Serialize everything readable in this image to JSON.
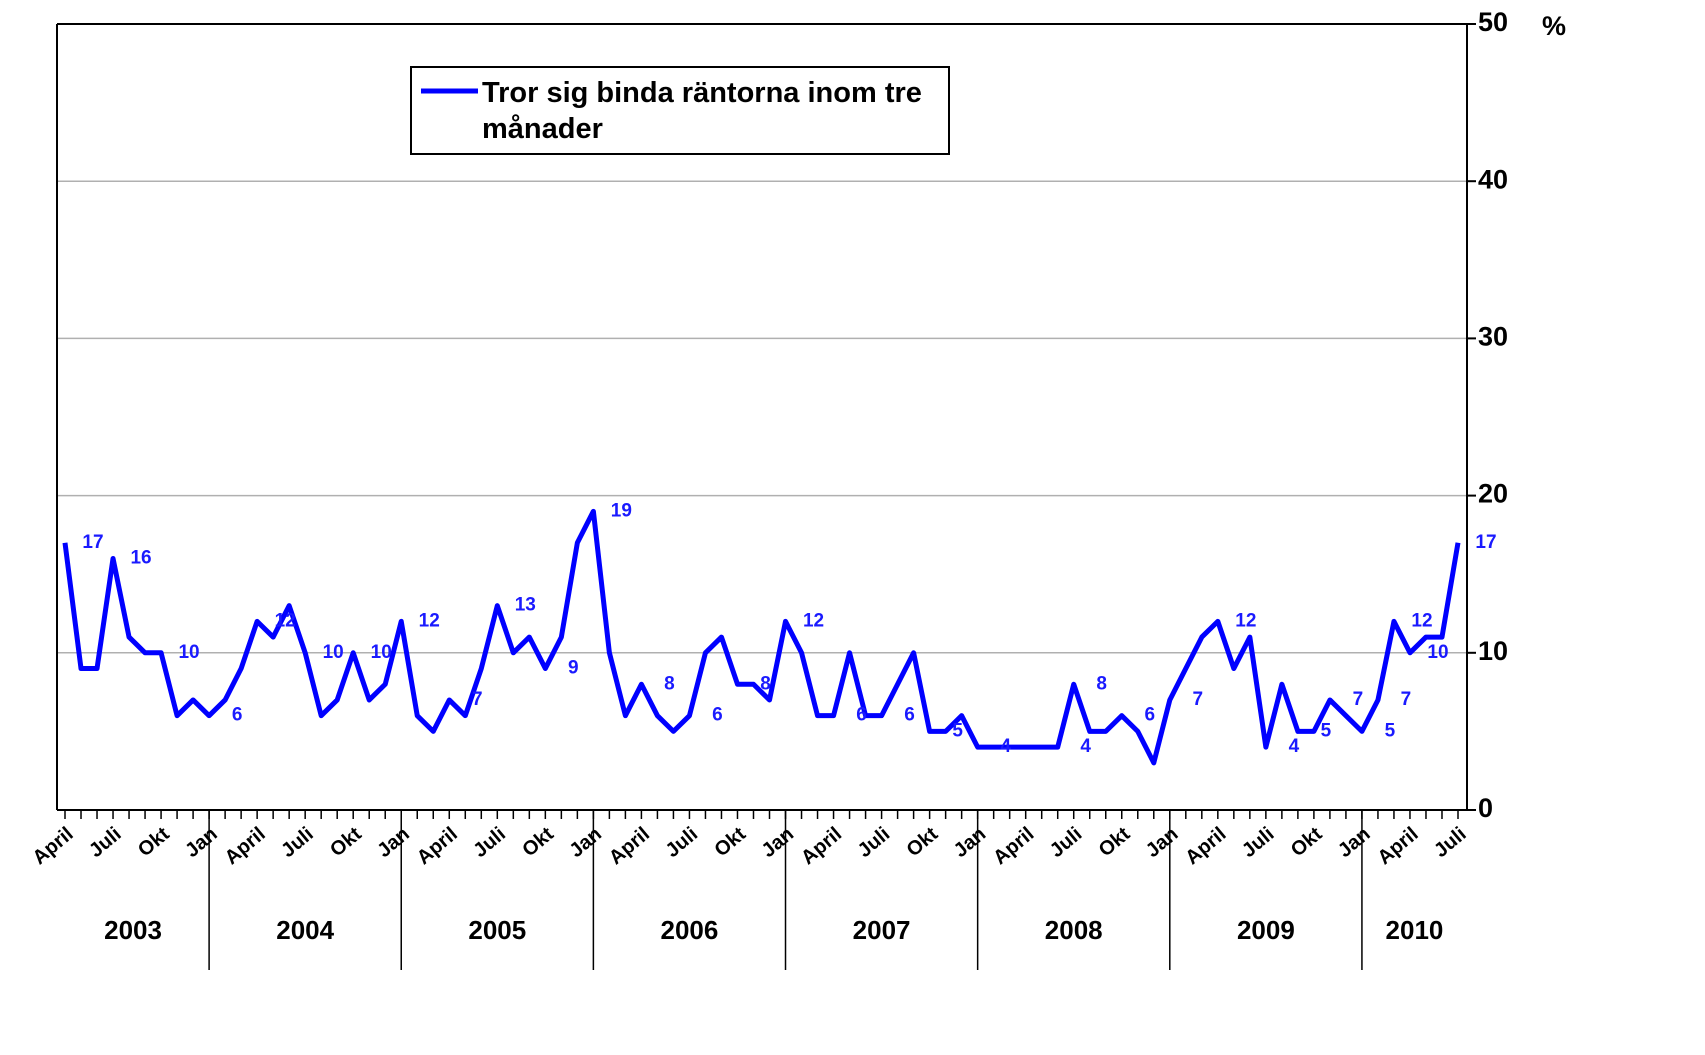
{
  "chart_data": {
    "type": "line",
    "legend_position": "upper center",
    "x": [
      "April",
      null,
      null,
      "Juli",
      null,
      null,
      "Okt",
      null,
      null,
      "Jan",
      null,
      null,
      "April",
      null,
      null,
      "Juli",
      null,
      null,
      "Okt",
      null,
      null,
      "Jan",
      null,
      null,
      "April",
      null,
      null,
      "Juli",
      null,
      null,
      "Okt",
      null,
      null,
      "Jan",
      null,
      null,
      "April",
      null,
      null,
      "Juli",
      null,
      null,
      "Okt",
      null,
      null,
      "Jan",
      null,
      null,
      "April",
      null,
      null,
      "Juli",
      null,
      null,
      "Okt",
      null,
      null,
      "Jan",
      null,
      null,
      "April",
      null,
      null,
      "Juli",
      null,
      null,
      "Okt",
      null,
      null,
      "Jan",
      null,
      null,
      "April",
      null,
      null,
      "Juli",
      null,
      null,
      "Okt",
      null,
      null,
      "Jan",
      null,
      null,
      "April",
      null,
      null,
      "Juli"
    ],
    "years": [
      "2003",
      "2004",
      "2005",
      "2006",
      "2007",
      "2008",
      "2009",
      "2010"
    ],
    "series": [
      {
        "name": "Tror sig binda räntorna inom tre månader",
        "color": "#0000ff",
        "values": [
          17,
          9,
          9,
          16,
          11,
          10,
          10,
          6,
          7,
          6,
          7,
          9,
          12,
          11,
          13,
          10,
          6,
          7,
          10,
          7,
          8,
          12,
          6,
          5,
          7,
          6,
          9,
          13,
          10,
          11,
          9,
          11,
          17,
          19,
          10,
          6,
          8,
          6,
          5,
          6,
          10,
          11,
          8,
          8,
          7,
          12,
          10,
          6,
          6,
          10,
          6,
          6,
          8,
          10,
          5,
          5,
          6,
          4,
          4,
          4,
          4,
          4,
          4,
          8,
          5,
          5,
          6,
          5,
          3,
          7,
          9,
          11,
          12,
          9,
          11,
          4,
          8,
          5,
          5,
          7,
          6,
          5,
          7,
          12,
          10,
          11,
          11,
          17
        ],
        "value_labels": [
          "17",
          null,
          null,
          "16",
          null,
          null,
          "10",
          null,
          null,
          "6",
          null,
          null,
          "12",
          null,
          null,
          "10",
          null,
          null,
          "10",
          null,
          null,
          "12",
          null,
          null,
          "7",
          null,
          null,
          "13",
          null,
          null,
          "9",
          null,
          null,
          "19",
          null,
          null,
          "8",
          null,
          null,
          "6",
          null,
          null,
          "8",
          null,
          null,
          "12",
          null,
          null,
          "6",
          null,
          null,
          "6",
          null,
          null,
          "5",
          null,
          null,
          "4",
          null,
          null,
          null,
          null,
          "4",
          "8",
          null,
          null,
          "6",
          null,
          null,
          "7",
          null,
          null,
          "12",
          null,
          null,
          "4",
          null,
          "5",
          null,
          "7",
          null,
          "5",
          "7",
          "12",
          "10",
          null,
          null,
          "17"
        ]
      }
    ],
    "ylim": [
      0,
      50
    ],
    "yticks": [
      0,
      10,
      20,
      30,
      40,
      50
    ],
    "y_unit": "%",
    "y_axis_side": "right",
    "grid": true
  }
}
